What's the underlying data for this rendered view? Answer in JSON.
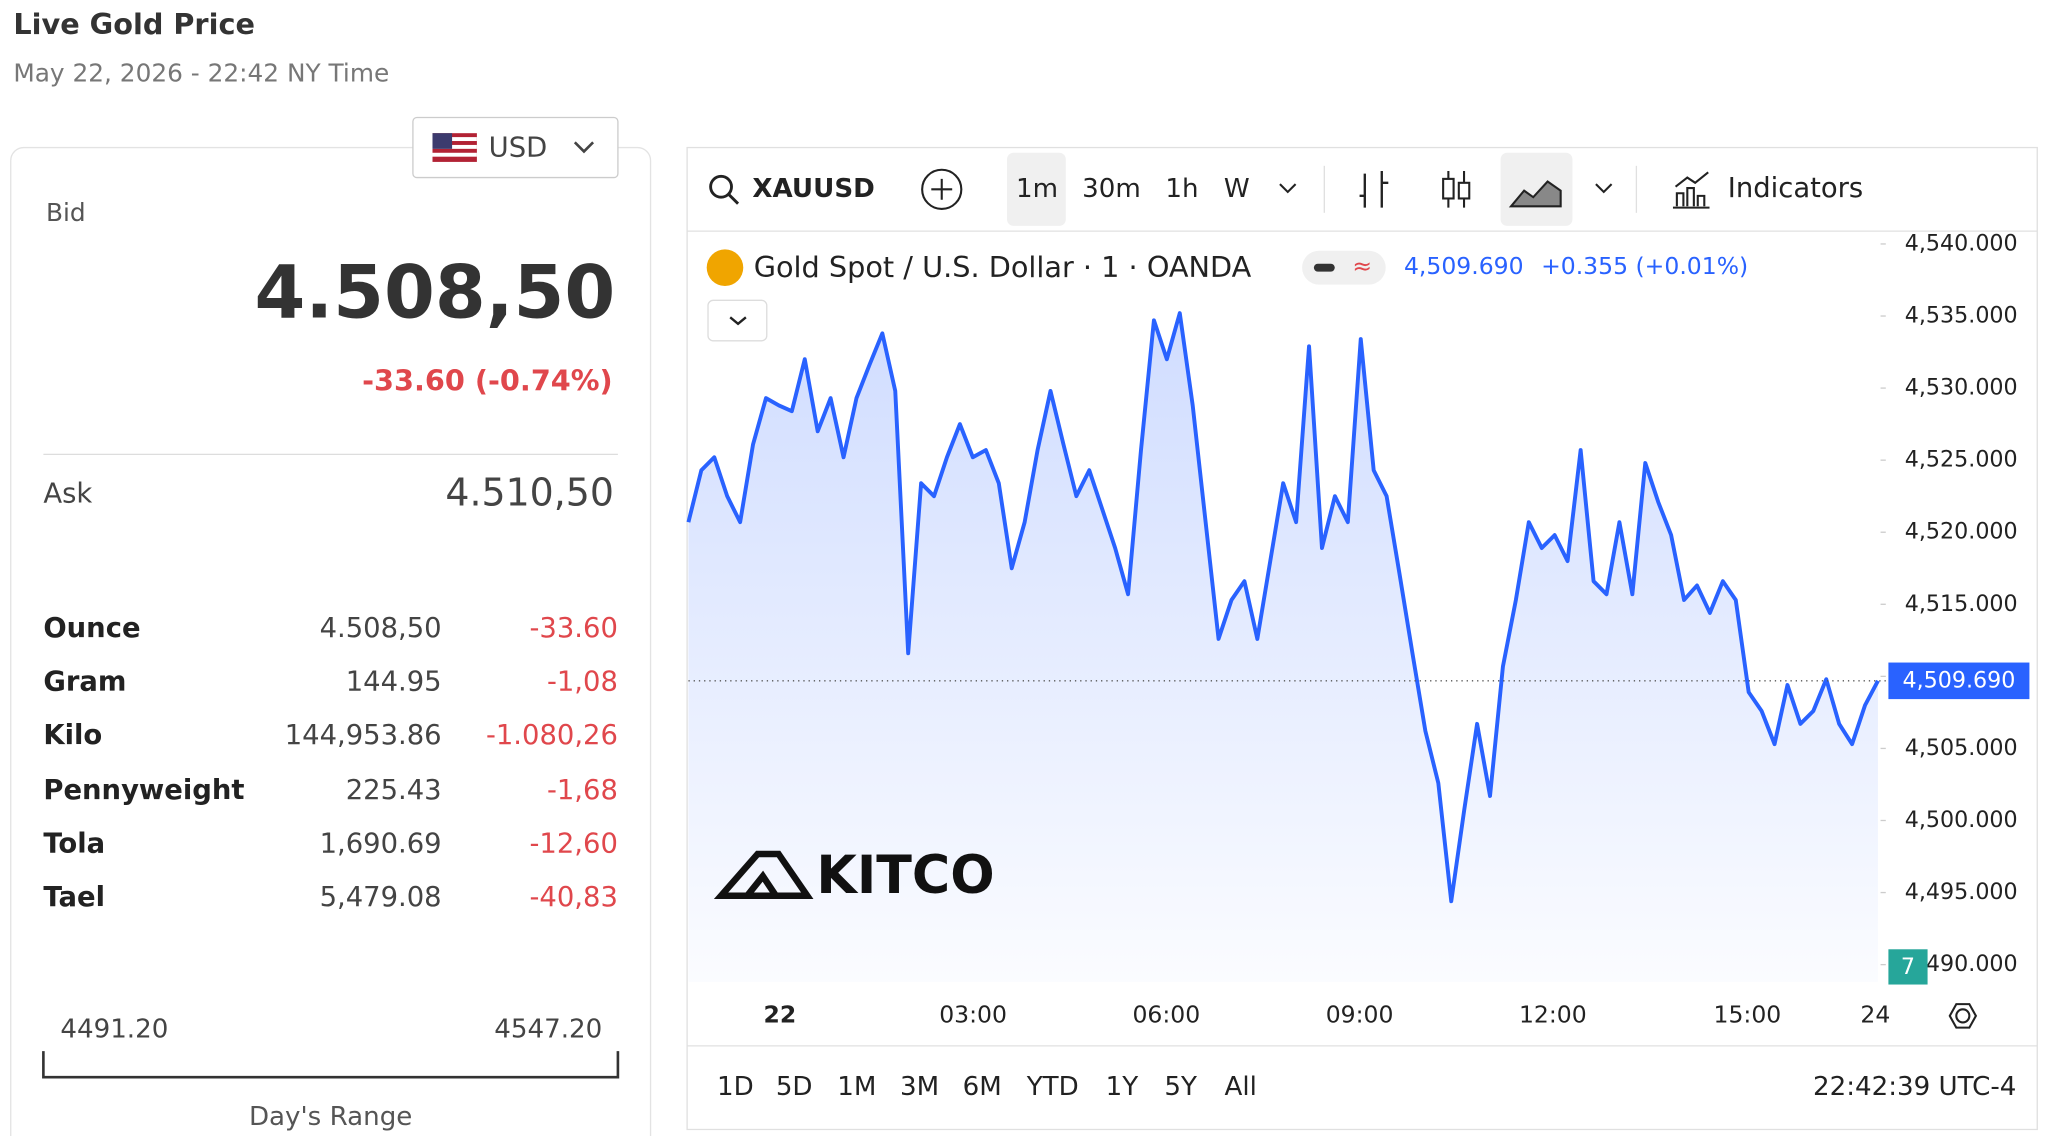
{
  "header": {
    "title": "Live Gold Price",
    "timestamp": "May 22, 2026 - 22:42 NY Time"
  },
  "currency": "USD",
  "quote": {
    "bid_label": "Bid",
    "bid": "4.508,50",
    "change": "-33.60 (-0.74%)",
    "ask_label": "Ask",
    "ask": "4.510,50"
  },
  "units": {
    "rows": [
      [
        "Ounce",
        "4.508,50",
        "-33.60"
      ],
      [
        "Gram",
        "144.95",
        "-1,08"
      ],
      [
        "Kilo",
        "144,953.86",
        "-1.080,26"
      ],
      [
        "Pennyweight",
        "225.43",
        "-1,68"
      ],
      [
        "Tola",
        "1,690.69",
        "-12,60"
      ],
      [
        "Tael",
        "5,479.08",
        "-40,83"
      ]
    ]
  },
  "day_range": {
    "low": "4491.20",
    "high": "4547.20",
    "label": "Day's Range"
  },
  "toolbar": {
    "symbol": "XAUUSD",
    "intervals": [
      "1m",
      "30m",
      "1h",
      "W"
    ],
    "indicators": "Indicators"
  },
  "logo": "KITCO",
  "badge": "7",
  "chart_data": {
    "type": "line",
    "title": "Gold Spot / U.S. Dollar · 1 · OANDA",
    "change_label": "+0.355 (+0.01%)",
    "last_price": {
      "value": 4509.69,
      "label": "4,509.690"
    },
    "color": "#2962ff",
    "values": [
      4520.7,
      4524.3,
      4525.2,
      4522.5,
      4520.7,
      4526.1,
      4529.3,
      4528.8,
      4528.4,
      4532.0,
      4527.0,
      4529.3,
      4525.2,
      4529.3,
      4531.6,
      4533.8,
      4529.8,
      4511.6,
      4523.4,
      4522.5,
      4525.2,
      4527.5,
      4525.2,
      4525.7,
      4523.4,
      4517.5,
      4520.7,
      4525.7,
      4529.8,
      4526.1,
      4522.5,
      4524.3,
      4521.6,
      4518.9,
      4515.7,
      4525.7,
      4534.7,
      4532.0,
      4535.2,
      4528.8,
      4520.7,
      4512.6,
      4515.3,
      4516.6,
      4512.6,
      4518.0,
      4523.4,
      4520.7,
      4532.9,
      4518.9,
      4522.5,
      4520.7,
      4533.4,
      4524.3,
      4522.5,
      4517.1,
      4511.6,
      4506.2,
      4502.6,
      4494.4,
      4500.7,
      4506.7,
      4501.7,
      4510.7,
      4515.3,
      4520.7,
      4518.9,
      4519.8,
      4518.0,
      4525.7,
      4516.6,
      4515.7,
      4520.7,
      4515.7,
      4524.8,
      4522.1,
      4519.8,
      4515.3,
      4516.3,
      4514.4,
      4516.6,
      4515.3,
      4508.9,
      4507.6,
      4505.3,
      4509.4,
      4506.7,
      4507.6,
      4509.8,
      4506.7,
      4505.3,
      4508.0,
      4509.69
    ],
    "ylim": [
      4488.8,
      4540.8
    ],
    "yticks": [
      {
        "value": 4490,
        "label": "4,490.000"
      },
      {
        "value": 4495,
        "label": "4,495.000"
      },
      {
        "value": 4500,
        "label": "4,500.000"
      },
      {
        "value": 4505,
        "label": "4,505.000"
      },
      {
        "value": 4510,
        "label": "4,510.000"
      },
      {
        "value": 4515,
        "label": "4,515.000"
      },
      {
        "value": 4520,
        "label": "4,520.000"
      },
      {
        "value": 4525,
        "label": "4,525.000"
      },
      {
        "value": 4530,
        "label": "4,530.000"
      },
      {
        "value": 4535,
        "label": "4,535.000"
      },
      {
        "value": 4540,
        "label": "4,540.000"
      }
    ],
    "xticks": [
      "22",
      "03:00",
      "06:00",
      "09:00",
      "12:00",
      "15:00",
      "24"
    ]
  },
  "range_buttons": [
    "1D",
    "5D",
    "1M",
    "3M",
    "6M",
    "YTD",
    "1Y",
    "5Y",
    "All"
  ],
  "clock": "22:42:39 UTC-4"
}
